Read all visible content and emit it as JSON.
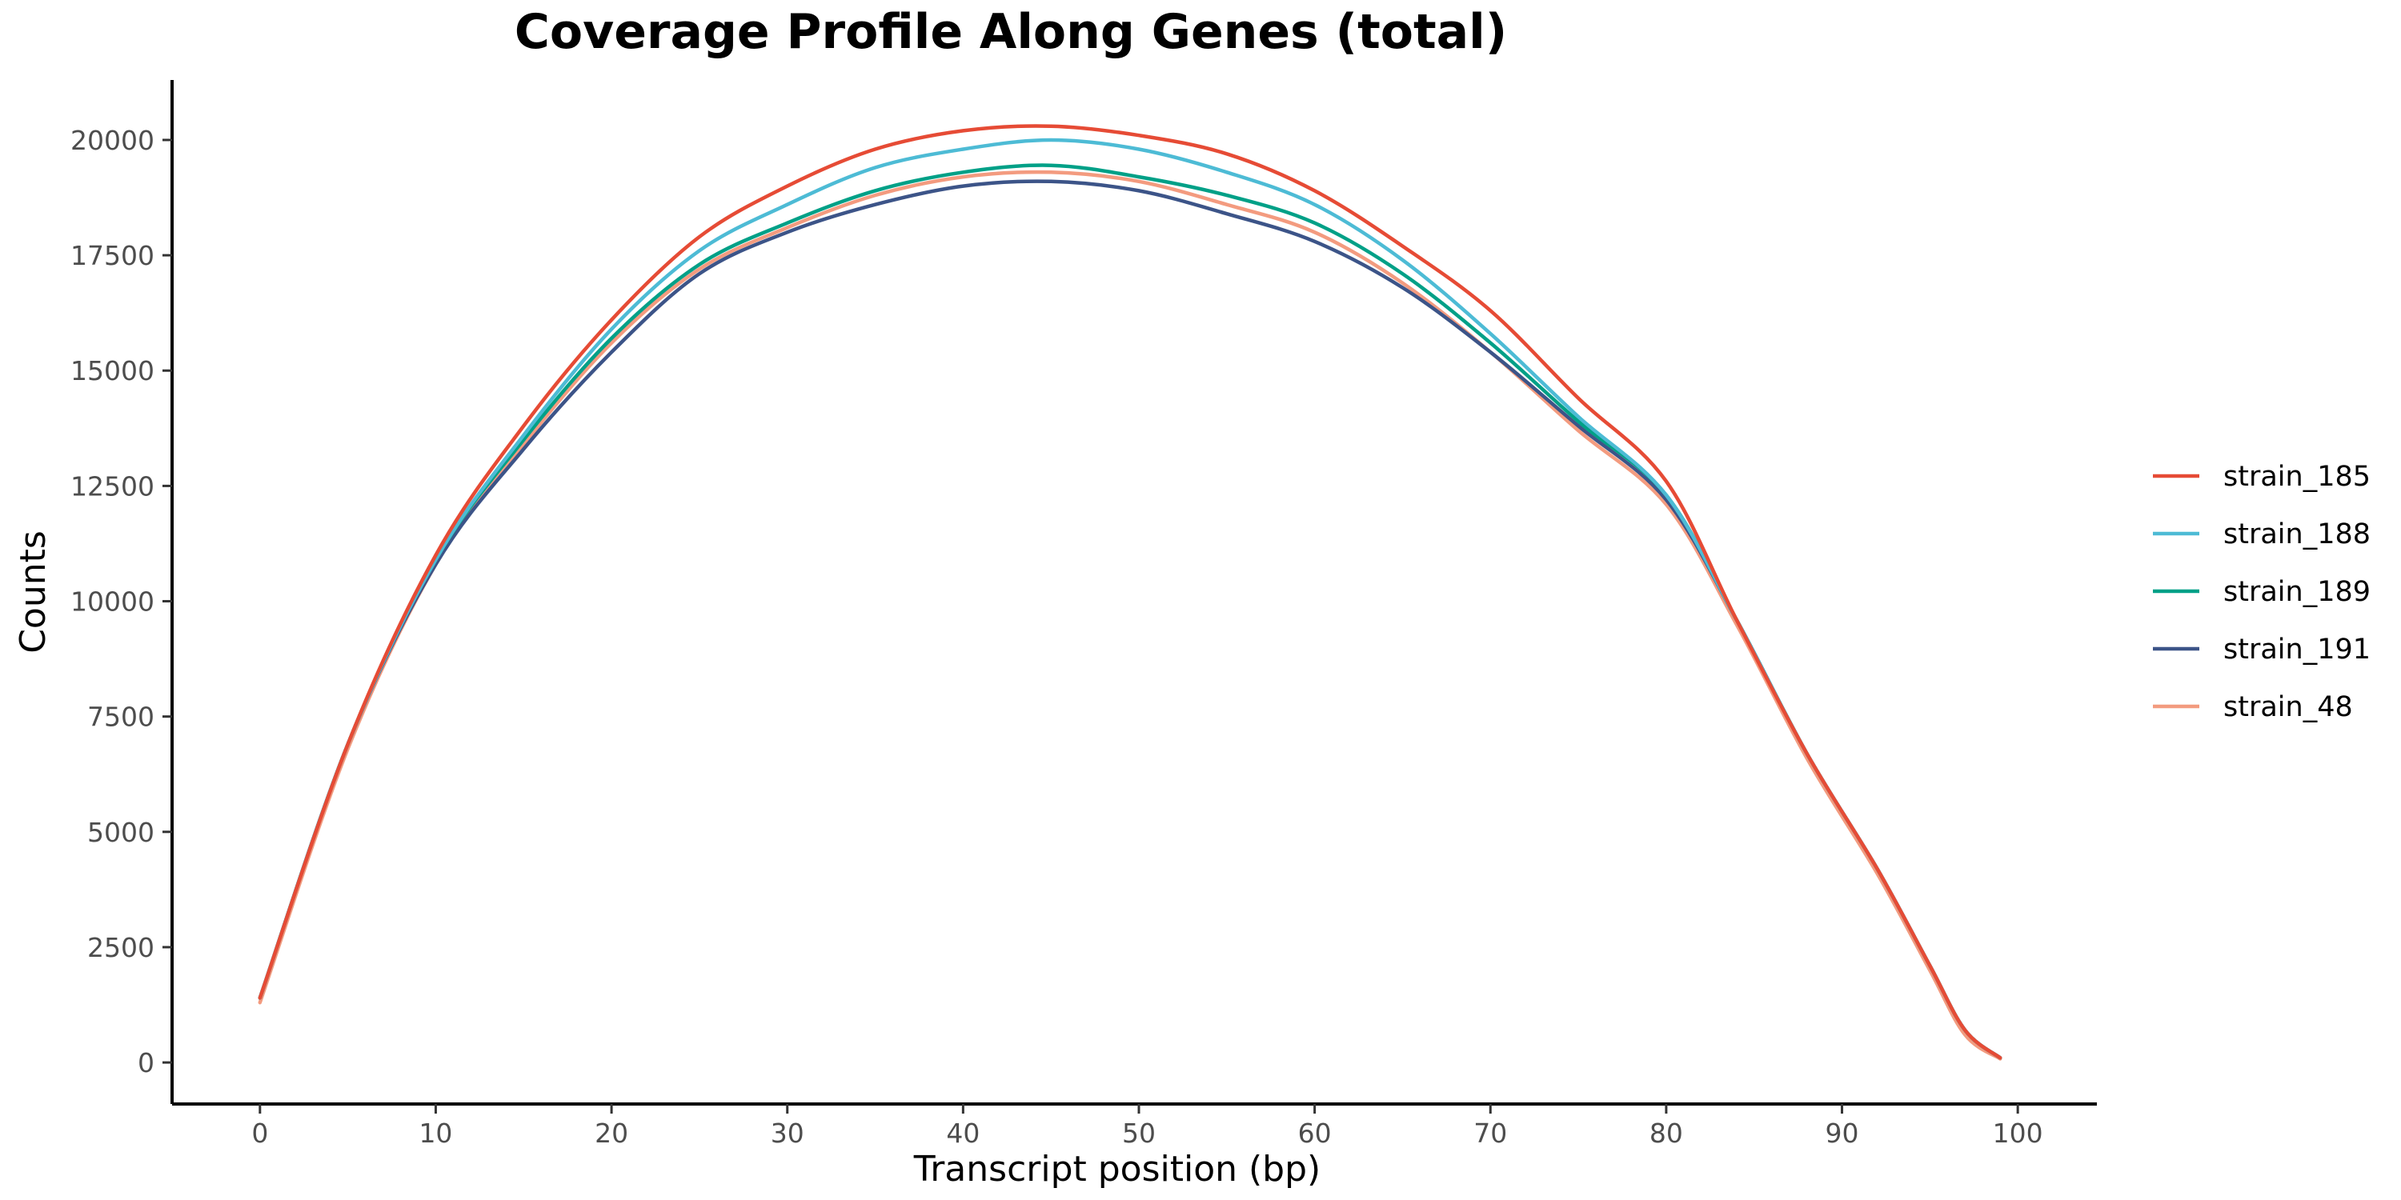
{
  "chart_data": {
    "type": "line",
    "title": "Coverage Profile Along Genes (total)",
    "xlabel": "Transcript position (bp)",
    "ylabel": "Counts",
    "xlim": [
      -5,
      104.5
    ],
    "ylim": [
      -900,
      21300
    ],
    "xticks": [
      0,
      10,
      20,
      30,
      40,
      50,
      60,
      70,
      80,
      90,
      100
    ],
    "yticks": [
      0,
      2500,
      5000,
      7500,
      10000,
      12500,
      15000,
      17500,
      20000
    ],
    "grid": false,
    "legend_position": "right",
    "x": [
      0,
      5,
      10,
      15,
      20,
      25,
      30,
      35,
      40,
      45,
      50,
      55,
      60,
      65,
      70,
      75,
      80,
      84,
      88,
      92,
      95,
      97,
      99
    ],
    "series": [
      {
        "name": "strain_185",
        "color": "#E64B35",
        "values": [
          1400,
          6900,
          11000,
          13800,
          16100,
          17900,
          19000,
          19800,
          20200,
          20300,
          20100,
          19700,
          18900,
          17700,
          16300,
          14400,
          12600,
          9600,
          6700,
          4200,
          2100,
          700,
          100
        ]
      },
      {
        "name": "strain_188",
        "color": "#4DBBD5",
        "values": [
          1400,
          6900,
          10900,
          13600,
          15900,
          17600,
          18600,
          19400,
          19800,
          20000,
          19800,
          19300,
          18600,
          17400,
          15800,
          14000,
          12300,
          9600,
          6700,
          4200,
          2100,
          700,
          100
        ]
      },
      {
        "name": "strain_189",
        "color": "#00A087",
        "values": [
          1400,
          6900,
          10900,
          13500,
          15700,
          17300,
          18200,
          18900,
          19300,
          19450,
          19200,
          18800,
          18200,
          17100,
          15600,
          13900,
          12300,
          9600,
          6700,
          4200,
          2100,
          700,
          100
        ]
      },
      {
        "name": "strain_191",
        "color": "#3C5488",
        "values": [
          1400,
          6900,
          10800,
          13300,
          15400,
          17100,
          18000,
          18600,
          19000,
          19100,
          18900,
          18400,
          17800,
          16800,
          15400,
          13800,
          12200,
          9600,
          6700,
          4200,
          2100,
          700,
          100
        ]
      },
      {
        "name": "strain_48",
        "color": "#F39B7F",
        "values": [
          1300,
          6800,
          10800,
          13400,
          15600,
          17200,
          18100,
          18800,
          19200,
          19300,
          19100,
          18600,
          18000,
          16900,
          15400,
          13700,
          12100,
          9500,
          6600,
          4100,
          2000,
          600,
          80
        ]
      }
    ]
  }
}
